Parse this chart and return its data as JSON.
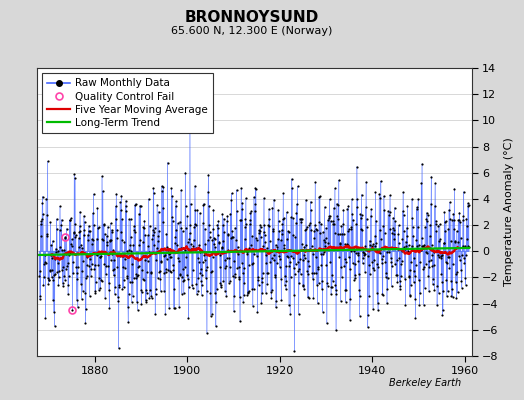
{
  "title": "BRONNOYSUND",
  "subtitle": "65.600 N, 12.300 E (Norway)",
  "ylabel": "Temperature Anomaly (°C)",
  "watermark": "Berkeley Earth",
  "xlim": [
    1867.5,
    1961.5
  ],
  "ylim": [
    -8,
    14
  ],
  "yticks": [
    -8,
    -6,
    -4,
    -2,
    0,
    2,
    4,
    6,
    8,
    10,
    12,
    14
  ],
  "xticks": [
    1880,
    1900,
    1920,
    1940,
    1960
  ],
  "start_year": 1868,
  "end_year": 1960,
  "seed": 12345,
  "background_color": "#d8d8d8",
  "plot_bg_color": "#ffffff",
  "raw_line_color": "#4466ff",
  "raw_marker_color": "#000000",
  "moving_avg_color": "#dd0000",
  "trend_color": "#00bb00",
  "qc_fail_color": "#ff44aa",
  "title_fontsize": 11,
  "subtitle_fontsize": 8,
  "ylabel_fontsize": 8,
  "tick_fontsize": 8,
  "legend_fontsize": 7.5,
  "watermark_fontsize": 7
}
